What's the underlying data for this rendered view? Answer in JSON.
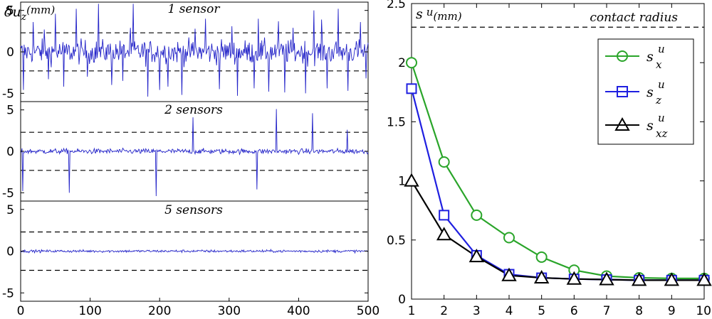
{
  "chart_data": [
    {
      "type": "line",
      "title": "1 sensor",
      "ylabel": "δu_z (mm)",
      "ylabel_main": "δu",
      "ylabel_sub": "z",
      "ylabel_unit": "(mm)",
      "xlim": [
        0,
        500
      ],
      "ylim": [
        -6,
        6
      ],
      "yticks": [
        5,
        0,
        -5
      ],
      "threshold": 2.3,
      "noise_std": 1.0,
      "n_points": 500,
      "spikes": [
        {
          "x": 4,
          "y": -4.6
        },
        {
          "x": 18,
          "y": 3.6
        },
        {
          "x": 34,
          "y": 2.7
        },
        {
          "x": 40,
          "y": -3.3
        },
        {
          "x": 50,
          "y": 4.6
        },
        {
          "x": 62,
          "y": -4.2
        },
        {
          "x": 80,
          "y": 5.2
        },
        {
          "x": 96,
          "y": -3.0
        },
        {
          "x": 112,
          "y": 5.8
        },
        {
          "x": 131,
          "y": -4.0
        },
        {
          "x": 147,
          "y": -3.5
        },
        {
          "x": 158,
          "y": 2.9
        },
        {
          "x": 162,
          "y": 5.8
        },
        {
          "x": 183,
          "y": -5.4
        },
        {
          "x": 200,
          "y": -4.6
        },
        {
          "x": 212,
          "y": -4.2
        },
        {
          "x": 232,
          "y": -5.2
        },
        {
          "x": 251,
          "y": 2.8
        },
        {
          "x": 266,
          "y": 4.0
        },
        {
          "x": 286,
          "y": -4.5
        },
        {
          "x": 304,
          "y": 3.1
        },
        {
          "x": 312,
          "y": -5.3
        },
        {
          "x": 336,
          "y": -4.4
        },
        {
          "x": 342,
          "y": 4.0
        },
        {
          "x": 357,
          "y": -4.8
        },
        {
          "x": 371,
          "y": 3.7
        },
        {
          "x": 380,
          "y": -4.9
        },
        {
          "x": 392,
          "y": 2.9
        },
        {
          "x": 410,
          "y": -5.0
        },
        {
          "x": 422,
          "y": 5.0
        },
        {
          "x": 433,
          "y": 3.9
        },
        {
          "x": 441,
          "y": -4.4
        },
        {
          "x": 457,
          "y": 5.2
        },
        {
          "x": 471,
          "y": -4.7
        },
        {
          "x": 489,
          "y": 3.6
        },
        {
          "x": 497,
          "y": -3.2
        }
      ]
    },
    {
      "type": "line",
      "title": "2 sensors",
      "xlim": [
        0,
        500
      ],
      "ylim": [
        -6,
        6
      ],
      "yticks": [
        5,
        0,
        -5
      ],
      "threshold": 2.3,
      "noise_std": 0.22,
      "n_points": 500,
      "spikes": [
        {
          "x": 3,
          "y": -4.8
        },
        {
          "x": 70,
          "y": -5.0
        },
        {
          "x": 195,
          "y": -5.4
        },
        {
          "x": 248,
          "y": 4.1
        },
        {
          "x": 340,
          "y": -4.6
        },
        {
          "x": 368,
          "y": 5.1
        },
        {
          "x": 420,
          "y": 4.6
        },
        {
          "x": 470,
          "y": 2.6
        }
      ]
    },
    {
      "type": "line",
      "title": "5 sensors",
      "xlabel": "",
      "xlim": [
        0,
        500
      ],
      "ylim": [
        -6,
        6
      ],
      "yticks": [
        5,
        0,
        -5
      ],
      "xticks": [
        0,
        100,
        200,
        300,
        400,
        500
      ],
      "threshold": 2.3,
      "noise_std": 0.11,
      "n_points": 500,
      "spikes": []
    },
    {
      "type": "line",
      "title": "",
      "ylabel": "s^u (mm)",
      "ylabel_main": "s",
      "ylabel_sup": "u",
      "ylabel_unit": "(mm)",
      "xlim": [
        1,
        10
      ],
      "ylim": [
        0,
        2.5
      ],
      "xticks": [
        1,
        2,
        3,
        4,
        5,
        6,
        7,
        8,
        9,
        10
      ],
      "yticks": [
        0,
        0.5,
        1,
        1.5,
        2,
        2.5
      ],
      "reference_line": {
        "y": 2.3,
        "label": "contact radius"
      },
      "x": [
        1,
        2,
        3,
        4,
        5,
        6,
        7,
        8,
        9,
        10
      ],
      "series": [
        {
          "name": "s_x^u",
          "label_main": "s",
          "label_sub": "x",
          "label_sup": "u",
          "color": "#2aa52a",
          "marker": "circle",
          "values": [
            2.0,
            1.16,
            0.71,
            0.52,
            0.355,
            0.245,
            0.195,
            0.18,
            0.175,
            0.175
          ]
        },
        {
          "name": "s_z^u",
          "label_main": "s",
          "label_sub": "z",
          "label_sup": "u",
          "color": "#1f1fe0",
          "marker": "square",
          "values": [
            1.78,
            0.71,
            0.37,
            0.21,
            0.18,
            0.17,
            0.165,
            0.16,
            0.16,
            0.16
          ]
        },
        {
          "name": "s_xz^u",
          "label_main": "s",
          "label_sub": "xz",
          "label_sup": "u",
          "color": "#000000",
          "marker": "triangle",
          "values": [
            1.0,
            0.545,
            0.36,
            0.2,
            0.18,
            0.17,
            0.165,
            0.16,
            0.16,
            0.16
          ]
        }
      ],
      "legend_position": "top-right"
    }
  ]
}
